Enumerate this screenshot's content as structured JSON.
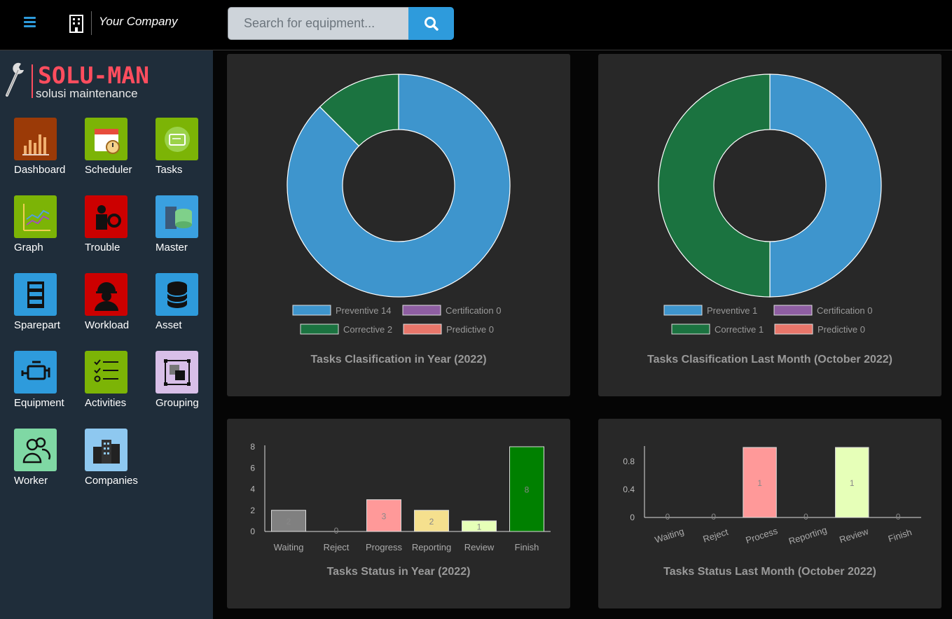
{
  "header": {
    "company": "Your Company",
    "search_placeholder": "Search for equipment..."
  },
  "brand": {
    "name": "SOLU-MAN",
    "tagline": "solusi maintenance"
  },
  "colors": {
    "accent": "#2e9bdc",
    "brand": "#ff4d5e",
    "sidebar": "#1f2d3a",
    "card": "#282828"
  },
  "menu": [
    {
      "label": "Dashboard",
      "icon": "bar-chart-icon",
      "color": "#9b3a07"
    },
    {
      "label": "Scheduler",
      "icon": "calendar-clock-icon",
      "color": "#7cb406"
    },
    {
      "label": "Tasks",
      "icon": "card-icon",
      "color": "#7cb406"
    },
    {
      "label": "Graph",
      "icon": "line-graph-icon",
      "color": "#7cb406"
    },
    {
      "label": "Trouble",
      "icon": "technician-gear-icon",
      "color": "#cc0000"
    },
    {
      "label": "Master",
      "icon": "database-server-icon",
      "color": "#3aa0e0"
    },
    {
      "label": "Sparepart",
      "icon": "rack-icon",
      "color": "#2e9bdc"
    },
    {
      "label": "Workload",
      "icon": "worker-helmet-icon",
      "color": "#cc0000"
    },
    {
      "label": "Asset",
      "icon": "database-icon",
      "color": "#2e9bdc"
    },
    {
      "label": "Equipment",
      "icon": "engine-icon",
      "color": "#2e9bdc"
    },
    {
      "label": "Activities",
      "icon": "checklist-icon",
      "color": "#7cb406"
    },
    {
      "label": "Grouping",
      "icon": "group-select-icon",
      "color": "#d8bfe8"
    },
    {
      "label": "Worker",
      "icon": "users-icon",
      "color": "#7fd8a4"
    },
    {
      "label": "Companies",
      "icon": "buildings-icon",
      "color": "#8ec8f0"
    }
  ],
  "chart_data": [
    {
      "type": "pie",
      "title": "Tasks Clasification in Year (2022)",
      "labels": [
        "Preventive",
        "Certification",
        "Corrective",
        "Predictive"
      ],
      "values": [
        14,
        0,
        2,
        0
      ],
      "colors": [
        "#3e95cd",
        "#8e5ea2",
        "#1b7340",
        "#e8766a"
      ],
      "legend_text": [
        "Preventive 14",
        "Certification 0",
        "Corrective 2",
        "Predictive 0"
      ],
      "legend": "bottom"
    },
    {
      "type": "pie",
      "title": "Tasks Clasification Last Month (October 2022)",
      "labels": [
        "Preventive",
        "Certification",
        "Corrective",
        "Predictive"
      ],
      "values": [
        1,
        0,
        1,
        0
      ],
      "colors": [
        "#3e95cd",
        "#8e5ea2",
        "#1b7340",
        "#e8766a"
      ],
      "legend_text": [
        "Preventive 1",
        "Certification 0",
        "Corrective 1",
        "Predictive 0"
      ],
      "legend": "bottom"
    },
    {
      "type": "bar",
      "title": "Tasks Status in Year (2022)",
      "categories": [
        "Waiting",
        "Reject",
        "Progress",
        "Reporting",
        "Review",
        "Finish"
      ],
      "values": [
        2,
        0,
        3,
        2,
        1,
        8
      ],
      "colors": [
        "#808080",
        "#ff9e9e",
        "#ff9999",
        "#f5e08e",
        "#e6ffb8",
        "#008000"
      ],
      "yticks": [
        "0",
        "2",
        "4",
        "6",
        "8"
      ],
      "ylim": [
        0,
        8
      ]
    },
    {
      "type": "bar",
      "title": "Tasks Status Last Month (October 2022)",
      "categories": [
        "Waiting",
        "Reject",
        "Process",
        "Reporting",
        "Review",
        "Finish"
      ],
      "values": [
        0,
        0,
        1,
        0,
        1,
        0
      ],
      "colors": [
        "#808080",
        "#ff9e9e",
        "#ff9999",
        "#f5e08e",
        "#e6ffb8",
        "#008000"
      ],
      "yticks": [
        "0",
        "0.4",
        "0.8"
      ],
      "ylim": [
        0,
        1
      ]
    }
  ]
}
